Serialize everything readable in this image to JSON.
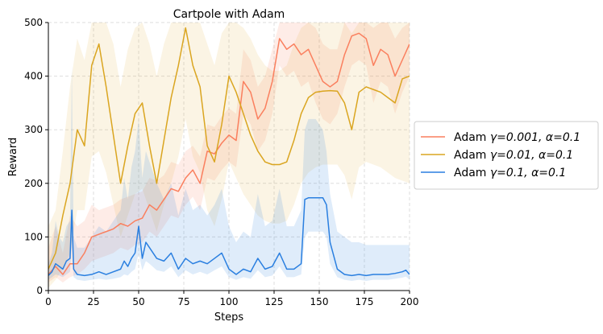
{
  "chart_data": {
    "type": "line",
    "title": "Cartpole with Adam",
    "xlabel": "Steps",
    "ylabel": "Reward",
    "xlim": [
      0,
      200
    ],
    "ylim": [
      0,
      500
    ],
    "xticks": [
      0,
      25,
      50,
      75,
      100,
      125,
      150,
      175,
      200
    ],
    "yticks": [
      0,
      100,
      200,
      300,
      400,
      500
    ],
    "grid": true,
    "grid_style": "dashed",
    "legend_position": "outside-right",
    "series": [
      {
        "name": "Adam γ=0.001, α=0.1",
        "legend_plain": "Adam ",
        "legend_gamma": "γ=0.001, ",
        "legend_alpha": "α=0.1",
        "color": "#fa7f5e",
        "band_opacity": 0.15,
        "x": [
          0,
          4,
          8,
          12,
          16,
          20,
          24,
          28,
          32,
          36,
          40,
          44,
          48,
          52,
          56,
          60,
          64,
          68,
          72,
          76,
          80,
          84,
          88,
          92,
          96,
          100,
          104,
          108,
          112,
          116,
          120,
          124,
          128,
          132,
          136,
          140,
          144,
          148,
          152,
          156,
          160,
          164,
          168,
          172,
          176,
          180,
          184,
          188,
          192,
          196,
          200
        ],
        "y": [
          30,
          45,
          30,
          50,
          50,
          70,
          100,
          105,
          110,
          115,
          125,
          120,
          130,
          135,
          160,
          150,
          170,
          190,
          185,
          210,
          225,
          200,
          260,
          255,
          275,
          290,
          280,
          390,
          370,
          320,
          340,
          390,
          470,
          450,
          460,
          440,
          450,
          420,
          390,
          380,
          390,
          440,
          475,
          480,
          470,
          420,
          450,
          440,
          400,
          430,
          460
        ],
        "lower": [
          15,
          25,
          15,
          25,
          30,
          40,
          55,
          60,
          65,
          70,
          80,
          75,
          85,
          90,
          110,
          100,
          120,
          140,
          135,
          160,
          175,
          150,
          210,
          205,
          225,
          240,
          230,
          330,
          310,
          260,
          280,
          330,
          420,
          400,
          410,
          380,
          390,
          350,
          320,
          310,
          330,
          380,
          420,
          430,
          420,
          350,
          390,
          380,
          330,
          370,
          400
        ],
        "upper": [
          80,
          120,
          70,
          140,
          120,
          130,
          160,
          150,
          155,
          160,
          170,
          175,
          180,
          185,
          210,
          205,
          215,
          240,
          235,
          260,
          270,
          250,
          310,
          305,
          325,
          340,
          330,
          450,
          430,
          380,
          400,
          450,
          500,
          500,
          500,
          500,
          500,
          490,
          460,
          450,
          450,
          500,
          500,
          500,
          500,
          490,
          500,
          500,
          470,
          490,
          500
        ]
      },
      {
        "name": "Adam γ=0.01, α=0.1",
        "legend_plain": "Adam ",
        "legend_gamma": "γ=0.01, ",
        "legend_alpha": "α=0.1",
        "color": "#daa520",
        "band_opacity": 0.12,
        "x": [
          0,
          4,
          8,
          12,
          16,
          20,
          24,
          28,
          32,
          36,
          40,
          44,
          48,
          52,
          56,
          60,
          64,
          68,
          72,
          76,
          80,
          84,
          88,
          92,
          96,
          100,
          104,
          108,
          112,
          116,
          120,
          124,
          128,
          132,
          136,
          140,
          144,
          148,
          152,
          156,
          160,
          164,
          168,
          172,
          176,
          180,
          184,
          188,
          192,
          196,
          200
        ],
        "y": [
          40,
          70,
          140,
          200,
          300,
          270,
          420,
          460,
          380,
          290,
          200,
          270,
          330,
          350,
          270,
          200,
          280,
          360,
          420,
          490,
          420,
          380,
          270,
          240,
          310,
          400,
          370,
          330,
          290,
          260,
          240,
          235,
          235,
          240,
          280,
          330,
          360,
          370,
          372,
          373,
          372,
          350,
          300,
          370,
          380,
          375,
          370,
          360,
          350,
          395,
          400
        ],
        "lower": [
          5,
          20,
          40,
          70,
          150,
          150,
          250,
          260,
          220,
          160,
          100,
          140,
          180,
          190,
          150,
          110,
          160,
          200,
          250,
          320,
          250,
          220,
          150,
          120,
          170,
          240,
          210,
          180,
          160,
          140,
          130,
          125,
          125,
          130,
          160,
          200,
          220,
          230,
          235,
          235,
          235,
          215,
          170,
          230,
          240,
          235,
          230,
          220,
          210,
          205,
          200
        ],
        "upper": [
          120,
          150,
          260,
          380,
          470,
          430,
          500,
          500,
          500,
          460,
          380,
          450,
          490,
          500,
          460,
          400,
          460,
          500,
          500,
          500,
          500,
          500,
          460,
          420,
          480,
          500,
          500,
          490,
          470,
          440,
          420,
          410,
          410,
          420,
          460,
          490,
          500,
          500,
          500,
          500,
          500,
          500,
          480,
          500,
          500,
          500,
          500,
          500,
          500,
          500,
          500
        ]
      },
      {
        "name": "Adam γ=0.1, α=0.1",
        "legend_plain": "Adam ",
        "legend_gamma": "γ=0.1, ",
        "legend_alpha": "α=0.1",
        "color": "#2a7fe0",
        "band_opacity": 0.15,
        "x": [
          0,
          2,
          4,
          6,
          8,
          10,
          12,
          13,
          14,
          16,
          20,
          24,
          28,
          32,
          36,
          40,
          42,
          44,
          46,
          48,
          50,
          52,
          54,
          56,
          60,
          64,
          68,
          72,
          76,
          80,
          84,
          88,
          92,
          96,
          100,
          104,
          108,
          112,
          116,
          120,
          124,
          128,
          132,
          136,
          140,
          142,
          144,
          148,
          152,
          154,
          156,
          160,
          164,
          168,
          172,
          176,
          180,
          184,
          188,
          192,
          196,
          198,
          200
        ],
        "y": [
          28,
          35,
          50,
          45,
          40,
          55,
          60,
          150,
          40,
          30,
          28,
          30,
          35,
          30,
          35,
          40,
          55,
          45,
          60,
          70,
          120,
          60,
          90,
          80,
          60,
          55,
          70,
          40,
          60,
          50,
          55,
          50,
          60,
          70,
          40,
          30,
          40,
          35,
          60,
          40,
          45,
          70,
          40,
          40,
          50,
          170,
          173,
          173,
          173,
          160,
          90,
          40,
          30,
          28,
          30,
          28,
          30,
          30,
          30,
          32,
          35,
          38,
          30
        ],
        "lower": [
          20,
          25,
          30,
          28,
          25,
          30,
          35,
          80,
          25,
          20,
          18,
          20,
          22,
          20,
          22,
          25,
          30,
          28,
          35,
          40,
          70,
          38,
          55,
          50,
          38,
          35,
          45,
          25,
          38,
          30,
          35,
          30,
          38,
          45,
          25,
          20,
          25,
          22,
          38,
          25,
          28,
          45,
          25,
          25,
          30,
          100,
          110,
          110,
          110,
          100,
          50,
          25,
          20,
          18,
          20,
          18,
          20,
          20,
          20,
          22,
          24,
          26,
          20
        ],
        "upper": [
          50,
          70,
          130,
          100,
          90,
          120,
          130,
          420,
          100,
          80,
          80,
          100,
          120,
          110,
          130,
          150,
          210,
          170,
          230,
          260,
          320,
          210,
          260,
          240,
          200,
          170,
          200,
          140,
          190,
          150,
          160,
          140,
          160,
          190,
          120,
          90,
          110,
          100,
          180,
          120,
          130,
          190,
          120,
          120,
          150,
          300,
          320,
          320,
          300,
          260,
          180,
          110,
          100,
          90,
          90,
          85,
          85,
          85,
          85,
          85,
          85,
          85,
          85
        ]
      }
    ]
  }
}
